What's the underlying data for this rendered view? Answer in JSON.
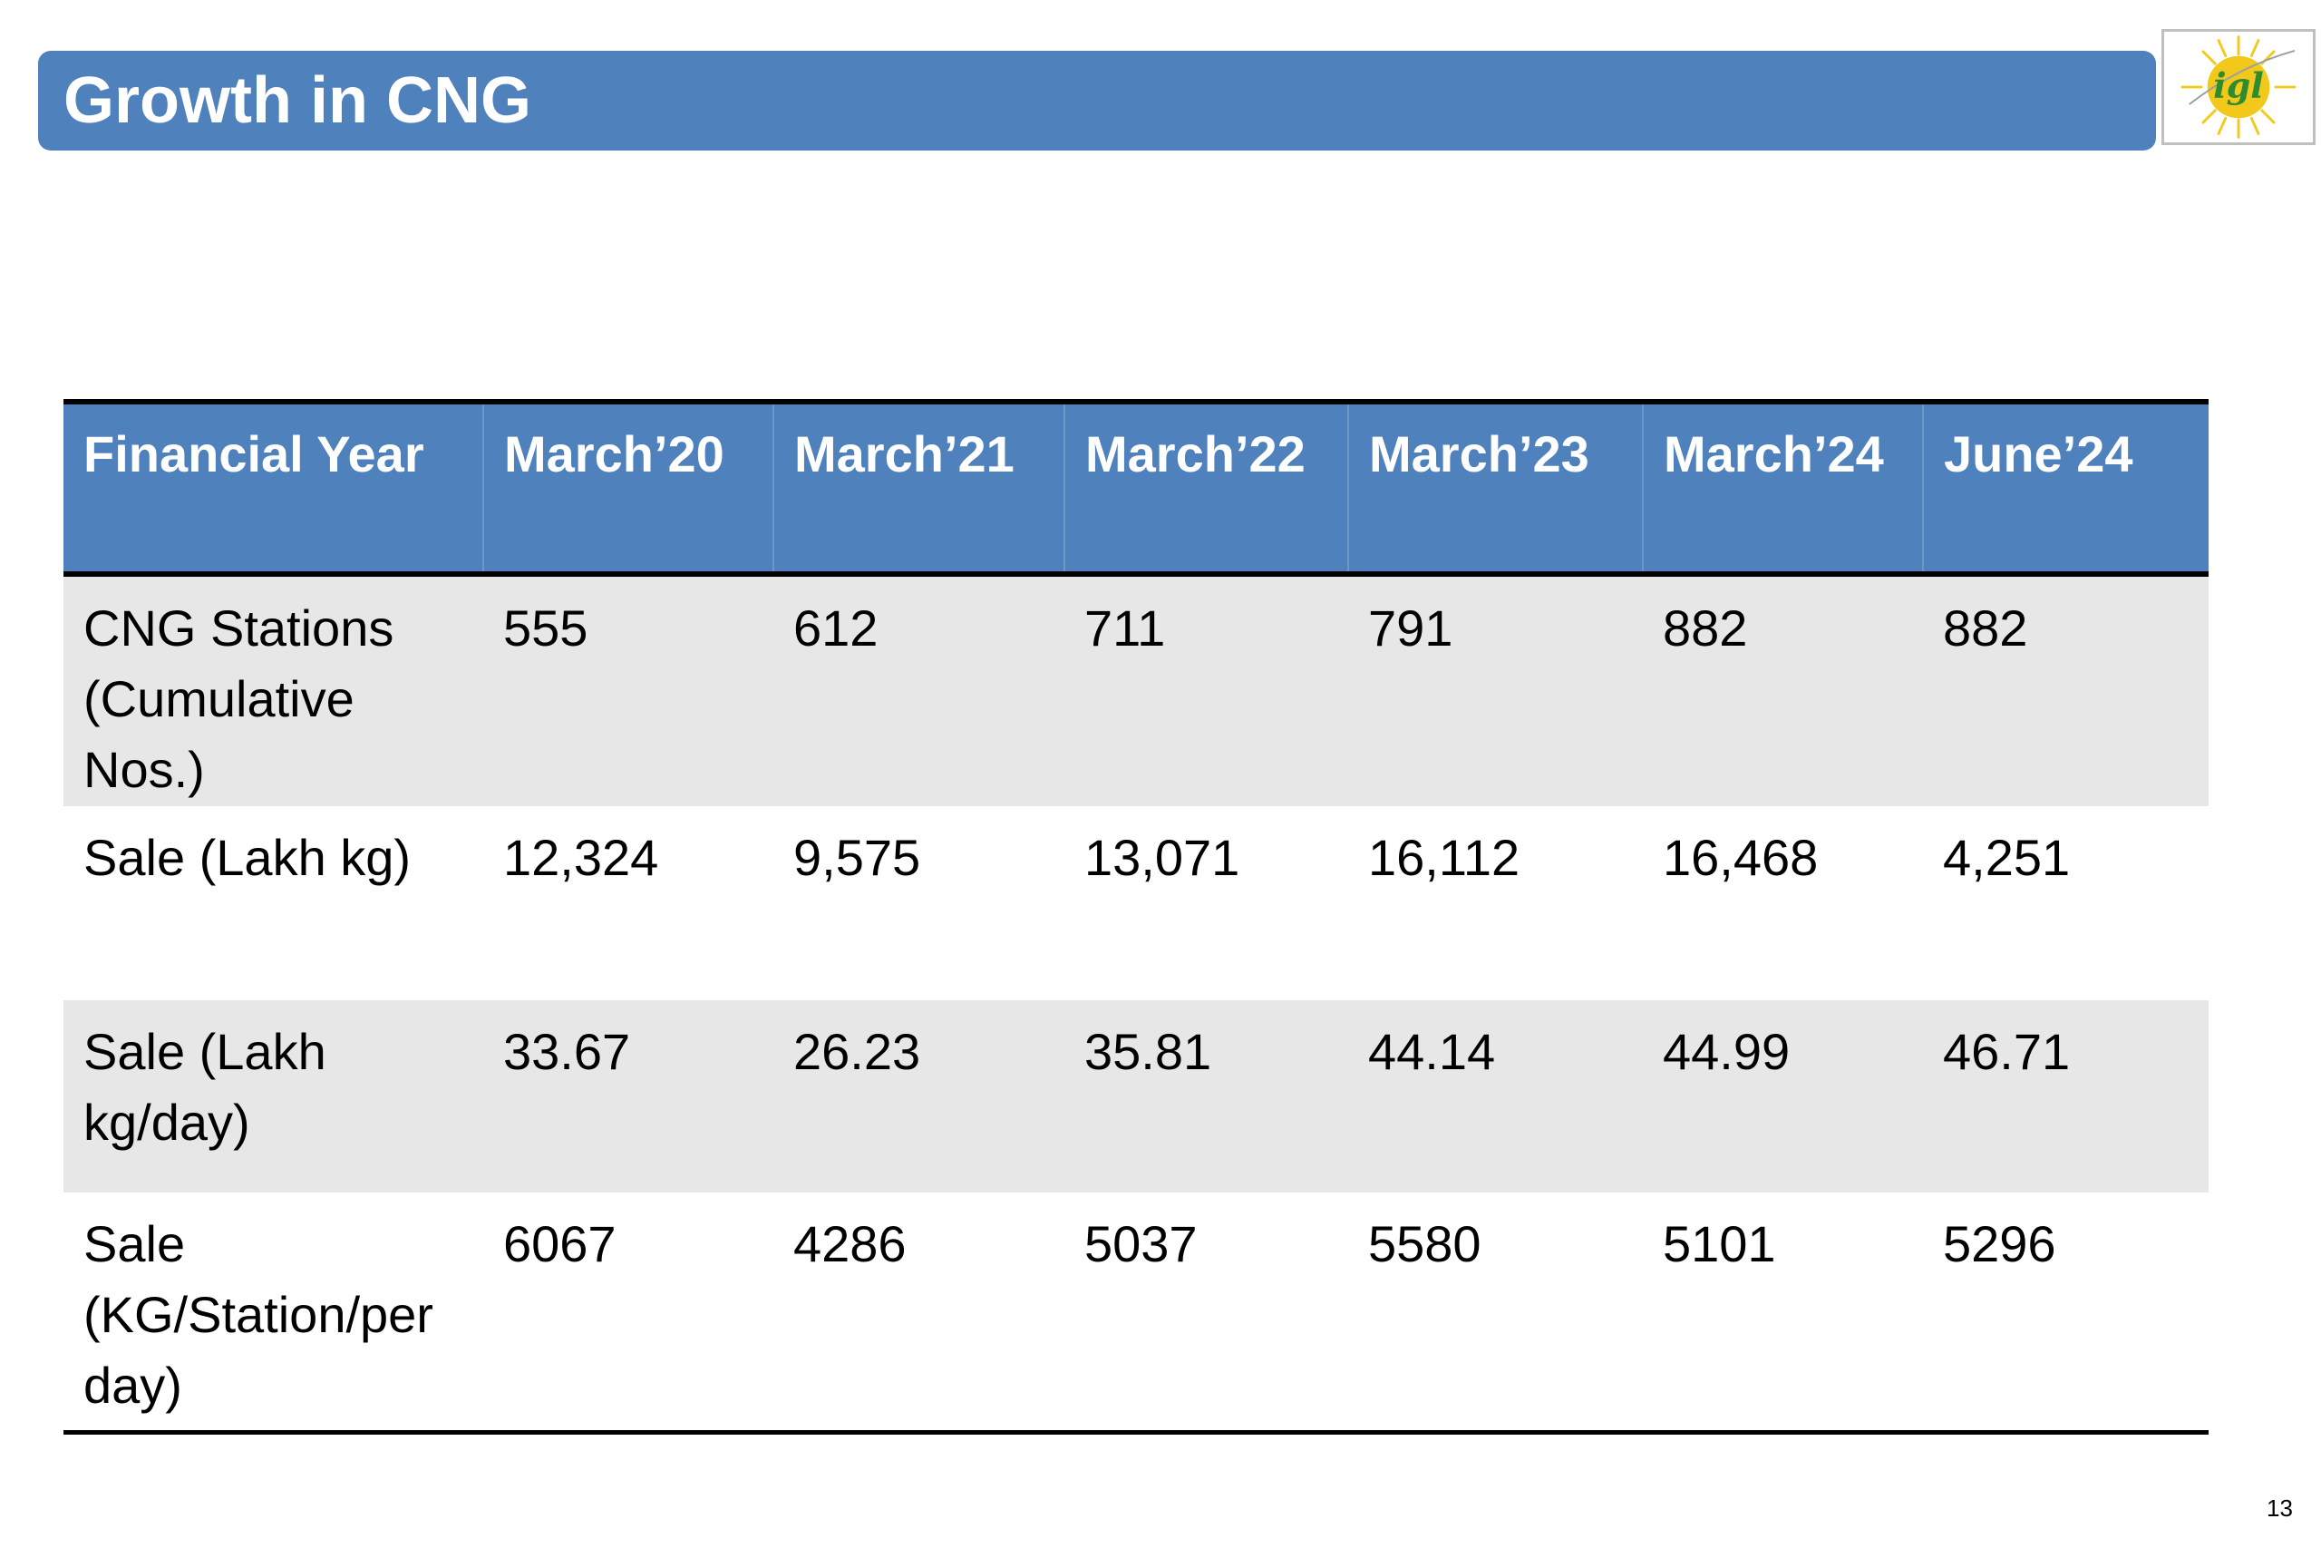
{
  "title": "Growth in CNG",
  "logo": {
    "text": "igl",
    "icon": "igl-sun-logo-icon"
  },
  "table": {
    "headers": [
      "Financial Year",
      "March’20",
      "March’21",
      "March’22",
      "March’23",
      "March’24",
      "June’24"
    ],
    "rows": [
      [
        "CNG Stations (Cumulative Nos.)",
        "555",
        "612",
        "711",
        "791",
        "882",
        "882"
      ],
      [
        "Sale (Lakh kg)",
        "12,324",
        "9,575",
        "13,071",
        "16,112",
        "16,468",
        "4,251"
      ],
      [
        "Sale (Lakh kg/day)",
        "33.67",
        "26.23",
        "35.81",
        "44.14",
        "44.99",
        "46.71"
      ],
      [
        "Sale (KG/Station/per day)",
        "6067",
        "4286",
        "5037",
        "5580",
        "5101",
        "5296"
      ]
    ]
  },
  "page_number": "13",
  "colors": {
    "header_blue": "#4F81BD",
    "row_shade": "#E7E7E7",
    "logo_green": "#2E8B2E",
    "logo_yellow": "#F2C81A"
  }
}
